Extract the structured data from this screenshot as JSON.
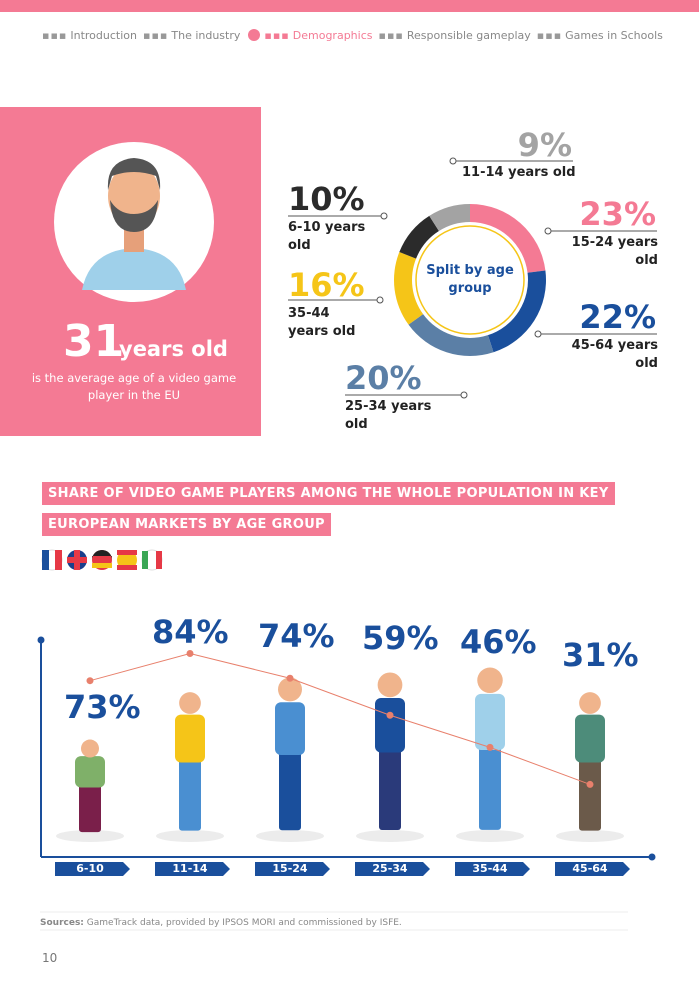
{
  "nav": [
    {
      "label": "Introduction",
      "active": false
    },
    {
      "label": "The industry",
      "active": false
    },
    {
      "label": "Demographics",
      "active": true
    },
    {
      "label": "Responsible gameplay",
      "active": false
    },
    {
      "label": "Games in Schools",
      "active": false
    }
  ],
  "hero": {
    "number": "31",
    "unit": "years old",
    "caption": "is the average age of a video game player in the EU"
  },
  "chart_data": [
    {
      "type": "donut",
      "title": "Split by age group",
      "categories": [
        "15-24 years old",
        "45-64 years old",
        "25-34 years old",
        "35-44 years old",
        "6-10 years old",
        "11-14 years old"
      ],
      "values": [
        23,
        22,
        20,
        16,
        10,
        9
      ],
      "value_labels": [
        "23%",
        "22%",
        "20%",
        "16%",
        "10%",
        "9%"
      ],
      "colors": [
        "#f47a94",
        "#1a4f9c",
        "#5b7fa6",
        "#f5c518",
        "#2b2b2b",
        "#a3a3a3"
      ]
    },
    {
      "type": "line",
      "title_lines": [
        "SHARE OF VIDEO GAME PLAYERS AMONG THE WHOLE POPULATION IN KEY",
        "EUROPEAN MARKETS BY AGE GROUP"
      ],
      "categories": [
        "6-10",
        "11-14",
        "15-24",
        "25-34",
        "35-44",
        "45-64"
      ],
      "values": [
        73,
        84,
        74,
        59,
        46,
        31
      ],
      "value_labels": [
        "73%",
        "84%",
        "74%",
        "59%",
        "46%",
        "31%"
      ],
      "ylim": [
        0,
        100
      ],
      "color": "#e8806c"
    }
  ],
  "sources": {
    "label": "Sources:",
    "text": "GameTrack data, provided by IPSOS MORI and commissioned by ISFE."
  },
  "page_number": "10"
}
